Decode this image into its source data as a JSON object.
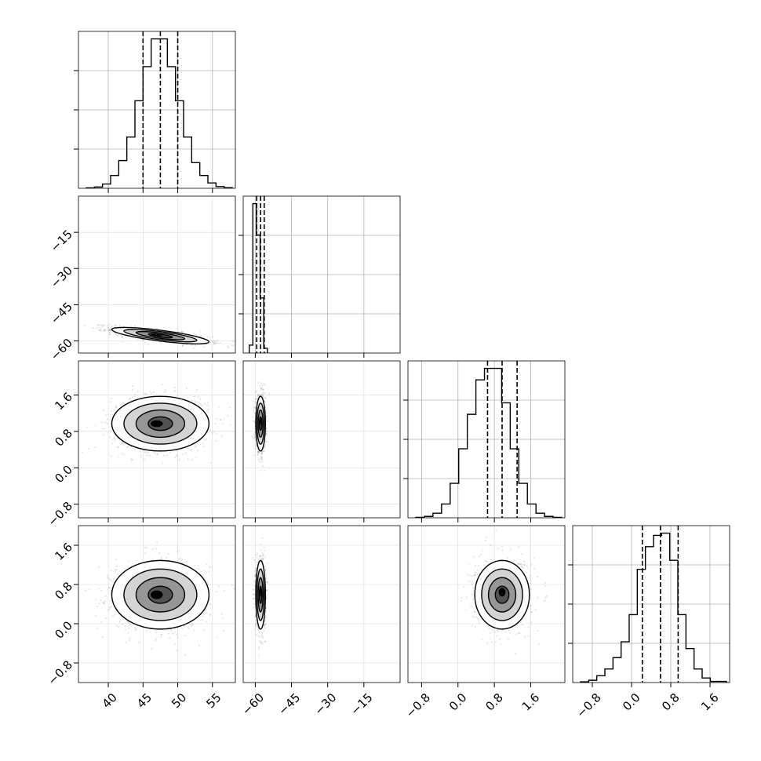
{
  "chart_data": {
    "type": "corner",
    "parameters": [
      {
        "axis_range": [
          35.7,
          58.3
        ],
        "ticks": [
          40,
          45,
          50,
          55
        ],
        "tick_labels": [
          "40",
          "45",
          "50",
          "55"
        ],
        "quantiles": [
          45.0,
          47.5,
          50.0
        ],
        "histogram": [
          0.2,
          0.6,
          2,
          6,
          13,
          24,
          41,
          57,
          70,
          70,
          57,
          41,
          24,
          12,
          6,
          2.5,
          0.8,
          0.3
        ]
      },
      {
        "axis_range": [
          -65,
          0
        ],
        "ticks": [
          -60,
          -45,
          -30,
          -15
        ],
        "tick_labels": [
          "−60",
          "−45",
          "−30",
          "−15"
        ],
        "quantiles": [
          -59.4,
          -57.8,
          -56.3
        ],
        "histogram": [
          5,
          95,
          75,
          35,
          3
        ]
      },
      {
        "axis_range": [
          -1.1,
          2.35
        ],
        "ticks": [
          -0.8,
          0.0,
          0.8,
          1.6
        ],
        "tick_labels": [
          "−0.8",
          "0.0",
          "0.8",
          "1.6"
        ],
        "quantiles": [
          0.65,
          0.97,
          1.3
        ],
        "histogram": [
          0.2,
          0.6,
          2,
          6,
          15,
          30,
          45,
          60,
          65,
          65,
          50,
          30,
          15,
          6,
          2,
          0.6,
          0.2
        ]
      },
      {
        "axis_range": [
          -1.2,
          2.0
        ],
        "ticks": [
          -0.8,
          0.0,
          0.8,
          1.6
        ],
        "tick_labels": [
          "−0.8",
          "0.0",
          "0.8",
          "1.6"
        ],
        "quantiles": [
          0.22,
          0.59,
          0.95
        ],
        "histogram": [
          0.3,
          1,
          3,
          6,
          11,
          18,
          30,
          50,
          60,
          65,
          66,
          54,
          30,
          15,
          6,
          2,
          0.5,
          0.5
        ]
      }
    ],
    "pairs": [
      {
        "x": 0,
        "y": 1,
        "center": [
          47.5,
          -57.8
        ],
        "sd": [
          3.5,
          1.7
        ],
        "rho": -0.75
      },
      {
        "x": 0,
        "y": 2,
        "center": [
          47.5,
          0.97
        ],
        "sd": [
          3.5,
          0.3
        ],
        "rho": 0.0
      },
      {
        "x": 1,
        "y": 2,
        "center": [
          -57.8,
          0.97
        ],
        "sd": [
          1.0,
          0.3
        ],
        "rho": 0.0
      },
      {
        "x": 0,
        "y": 3,
        "center": [
          47.5,
          0.59
        ],
        "sd": [
          3.5,
          0.35
        ],
        "rho": 0.0
      },
      {
        "x": 1,
        "y": 3,
        "center": [
          -57.8,
          0.59
        ],
        "sd": [
          1.0,
          0.35
        ],
        "rho": 0.0
      },
      {
        "x": 2,
        "y": 3,
        "center": [
          0.97,
          0.59
        ],
        "sd": [
          0.3,
          0.35
        ],
        "rho": 0.0
      }
    ],
    "contour_levels_sigma": [
      0.5,
      1.0,
      1.5,
      2.0
    ],
    "grid": true,
    "title": "",
    "legend": "none"
  }
}
